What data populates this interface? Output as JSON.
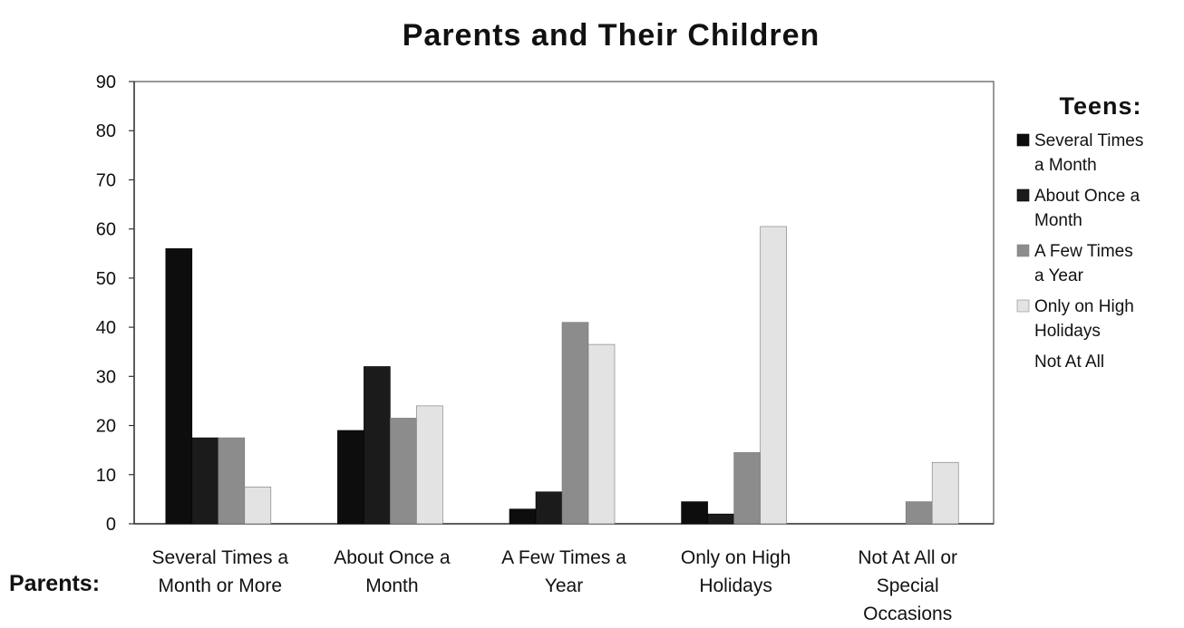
{
  "chart_data": {
    "type": "bar",
    "title": "Parents and Their Children",
    "xlabel": "Parents:",
    "ylabel": "",
    "ylim": [
      0,
      90
    ],
    "yticks": [
      0,
      10,
      20,
      30,
      40,
      50,
      60,
      70,
      80,
      90
    ],
    "grid": false,
    "legend_title": "Teens:",
    "legend_position": "right",
    "categories": [
      [
        "Several Times a",
        "Month or More"
      ],
      [
        "About Once a",
        "Month"
      ],
      [
        "A Few Times a",
        "Year"
      ],
      [
        "Only on High",
        "Holidays"
      ],
      [
        "Not At All or",
        "Special",
        "Occasions"
      ]
    ],
    "series": [
      {
        "name": [
          "Several Times",
          "a Month"
        ],
        "color": "#0d0d0d",
        "values": [
          56,
          19,
          3,
          4.5,
          0
        ]
      },
      {
        "name": [
          "About Once a",
          "Month"
        ],
        "color": "#1b1b1b",
        "values": [
          17.5,
          32,
          6.5,
          2,
          0
        ]
      },
      {
        "name": [
          "A Few Times",
          "a Year"
        ],
        "color": "#8c8c8c",
        "values": [
          17.5,
          21.5,
          41,
          14.5,
          4.5
        ]
      },
      {
        "name": [
          "Only on High",
          "Holidays"
        ],
        "color": "#e3e3e3",
        "values": [
          7.5,
          24,
          36.5,
          60.5,
          12.5
        ]
      },
      {
        "name": [
          "Not At All"
        ],
        "color": "#ffffff",
        "values": [
          0,
          0,
          0,
          0,
          0
        ]
      }
    ]
  }
}
